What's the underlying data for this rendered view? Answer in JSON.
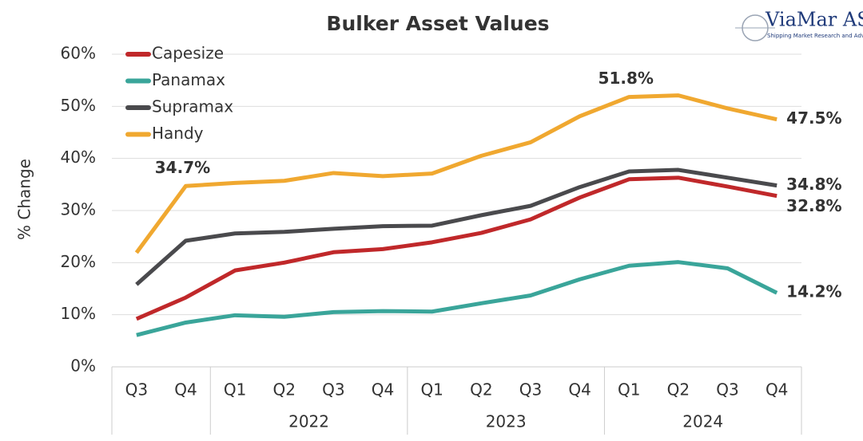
{
  "chart_data": {
    "type": "line",
    "title": "Bulker Asset Values",
    "ylabel": "% Change",
    "logo": {
      "name": "ViaMar AS",
      "tagline": "Shipping Market Research and Advice"
    },
    "categories": [
      "Q3",
      "Q4",
      "Q1",
      "Q2",
      "Q3",
      "Q4",
      "Q1",
      "Q2",
      "Q3",
      "Q4",
      "Q1",
      "Q2",
      "Q3",
      "Q4"
    ],
    "years": [
      null,
      null,
      "2022",
      "2022",
      "2022",
      "2022",
      "2023",
      "2023",
      "2023",
      "2023",
      "2024",
      "2024",
      "2024",
      "2024"
    ],
    "ylim": [
      0,
      60
    ],
    "yticks": [
      {
        "value": 0,
        "label": "0%"
      },
      {
        "value": 10,
        "label": "10%"
      },
      {
        "value": 20,
        "label": "20%"
      },
      {
        "value": 30,
        "label": "30%"
      },
      {
        "value": 40,
        "label": "40%"
      },
      {
        "value": 50,
        "label": "50%"
      },
      {
        "value": 60,
        "label": "60%"
      }
    ],
    "grid": true,
    "legend": "top-left",
    "series": [
      {
        "name": "Capesize",
        "color": "#c0282a",
        "values": [
          9.2,
          13.3,
          18.5,
          20.0,
          22.0,
          22.6,
          23.9,
          25.7,
          28.3,
          32.5,
          36.0,
          36.3,
          34.6,
          32.8
        ],
        "value_labels": [
          null,
          null,
          null,
          null,
          null,
          null,
          null,
          null,
          null,
          null,
          null,
          null,
          null,
          "32.8%"
        ]
      },
      {
        "name": "Panamax",
        "color": "#3aa59a",
        "values": [
          6.1,
          8.5,
          9.9,
          9.6,
          10.5,
          10.7,
          10.6,
          12.2,
          13.7,
          16.8,
          19.4,
          20.1,
          18.9,
          14.2
        ],
        "value_labels": [
          null,
          null,
          null,
          null,
          null,
          null,
          null,
          null,
          null,
          null,
          null,
          null,
          null,
          "14.2%"
        ]
      },
      {
        "name": "Supramax",
        "color": "#4a4a4d",
        "values": [
          15.8,
          24.2,
          25.6,
          25.9,
          26.5,
          27.0,
          27.1,
          29.1,
          30.9,
          34.5,
          37.5,
          37.8,
          36.3,
          34.8
        ],
        "value_labels": [
          null,
          null,
          null,
          null,
          null,
          null,
          null,
          null,
          null,
          null,
          null,
          null,
          null,
          "34.8%"
        ]
      },
      {
        "name": "Handy",
        "color": "#f0a830",
        "values": [
          21.9,
          34.7,
          35.3,
          35.7,
          37.2,
          36.6,
          37.1,
          40.5,
          43.1,
          48.1,
          51.8,
          52.1,
          49.6,
          47.5
        ],
        "value_labels": [
          null,
          "34.7%",
          null,
          null,
          null,
          null,
          null,
          null,
          null,
          null,
          "51.8%",
          null,
          null,
          "47.5%"
        ]
      }
    ]
  }
}
